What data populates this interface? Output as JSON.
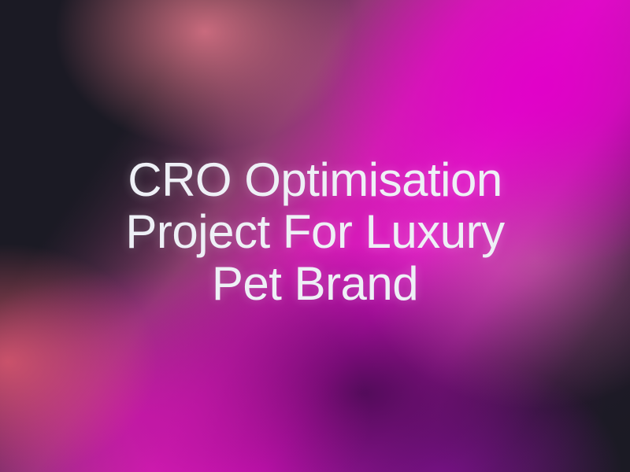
{
  "title": {
    "lines": [
      "CRO Optimisation",
      "Project For Luxury",
      "Pet Brand"
    ]
  },
  "colors": {
    "text": "#eef0f6",
    "dark": "#1b1a24",
    "magenta": "#e010c8",
    "salmon": "#e6788c",
    "purple": "#460a50"
  }
}
